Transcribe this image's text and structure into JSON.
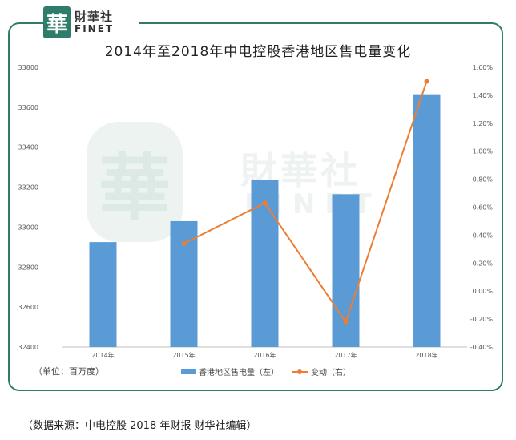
{
  "logo": {
    "badge": "華",
    "name_cn": "財華社",
    "name_en": "FINET"
  },
  "watermark": {
    "cn": "財華社",
    "en": "FINET",
    "badge": "華"
  },
  "unit_label": "（单位：百万度）",
  "source_note": "（数据来源：中电控股 2018 年财报   财华社编辑）",
  "colors": {
    "bar": "#5b9bd5",
    "line": "#ed7d31",
    "frame": "#2e7d6b"
  },
  "chart_data": {
    "type": "bar",
    "title": "2014年至2018年中电控股香港地区售电量变化",
    "categories": [
      "2014年",
      "2015年",
      "2016年",
      "2017年",
      "2018年"
    ],
    "series": [
      {
        "name": "香港地区售电量（左）",
        "type": "bar",
        "axis": "left",
        "values": [
          32925,
          33030,
          33235,
          33165,
          33665
        ]
      },
      {
        "name": "变动（右）",
        "type": "line",
        "axis": "right",
        "values": [
          null,
          0.0034,
          0.0063,
          -0.0022,
          0.015
        ]
      }
    ],
    "ylim_left": [
      32400,
      33800
    ],
    "yticks_left": [
      "32400",
      "32600",
      "32800",
      "33000",
      "33200",
      "33400",
      "33600",
      "33800"
    ],
    "ylim_right": [
      -0.004,
      0.016
    ],
    "yticks_right": [
      "-0.40%",
      "-0.20%",
      "0.00%",
      "0.20%",
      "0.40%",
      "0.60%",
      "0.80%",
      "1.00%",
      "1.20%",
      "1.40%",
      "1.60%"
    ],
    "legend_position": "bottom",
    "grid": false
  }
}
